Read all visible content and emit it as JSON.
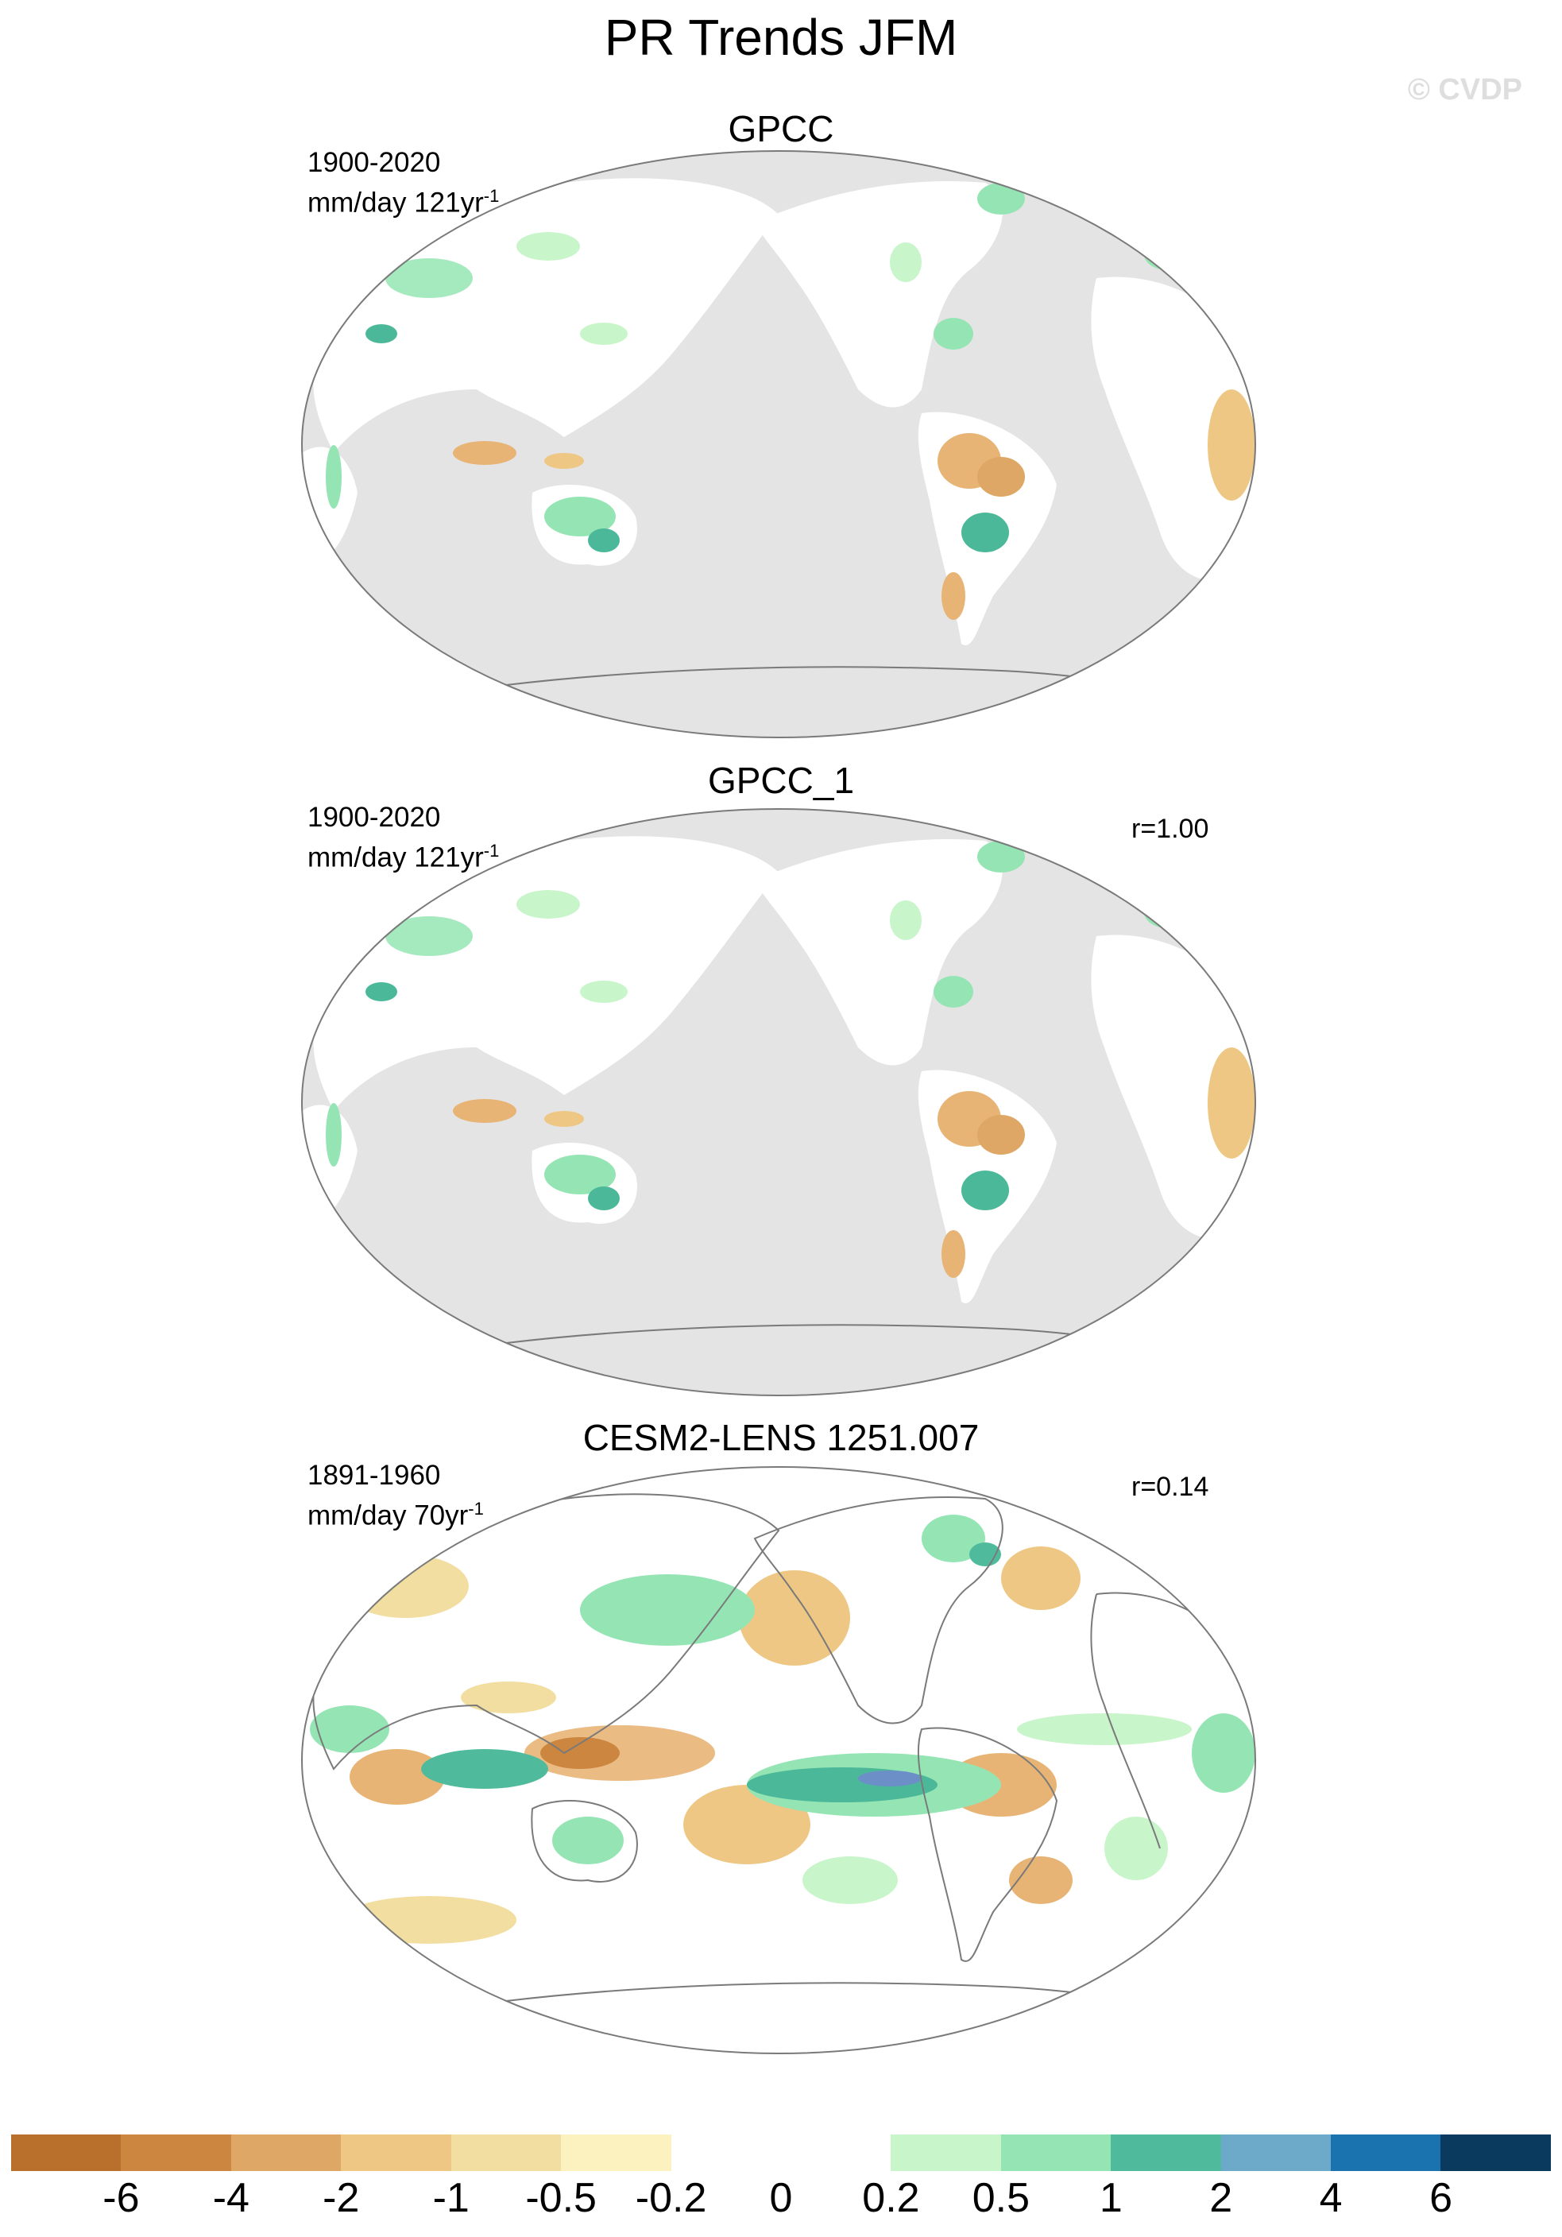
{
  "figure": {
    "title": "PR Trends JFM",
    "watermark": "© CVDP"
  },
  "panels": [
    {
      "name": "GPCC",
      "period": "1900-2020",
      "units": "mm/day 121yr",
      "units_exp": "-1",
      "corr": ""
    },
    {
      "name": "GPCC_1",
      "period": "1900-2020",
      "units": "mm/day 121yr",
      "units_exp": "-1",
      "corr": "r=1.00"
    },
    {
      "name": "CESM2-LENS 1251.007",
      "period": "1891-1960",
      "units": "mm/day 70yr",
      "units_exp": "-1",
      "corr": "r=0.14"
    }
  ],
  "colorbar": {
    "labels": [
      "-6",
      "-4",
      "-2",
      "-1",
      "-0.5",
      "-0.2",
      "0",
      "0.2",
      "0.5",
      "1",
      "2",
      "4",
      "6"
    ],
    "colors": [
      "#b8702c",
      "#cc8640",
      "#dfa765",
      "#eec784",
      "#f3dea1",
      "#fbf2bf",
      "#ffffff",
      "#ffffff",
      "#c9f5cb",
      "#95e5b4",
      "#50bb9c",
      "#6da9c9",
      "#1a72ae",
      "#0a3a5d"
    ]
  },
  "colors": {
    "ocean_missing": "#e4e4e4",
    "coastline": "#7a7a7a",
    "dry": "#e8b475",
    "wet": "#8fe0b0",
    "wet_strong": "#4cb89a",
    "very_wet": "#6d8fc8"
  }
}
